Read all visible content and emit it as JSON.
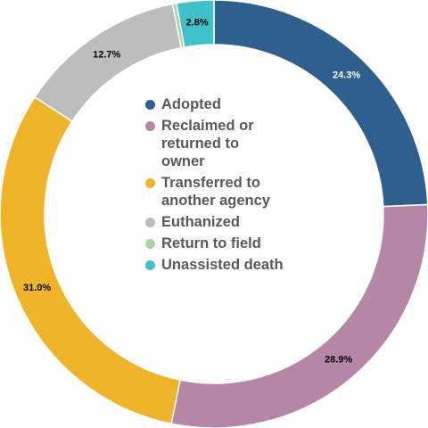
{
  "chart_data": {
    "type": "pie",
    "variant": "donut",
    "categories": [
      "Adopted",
      "Reclaimed or returned to owner",
      "Transferred to another agency",
      "Euthanized",
      "Return to field",
      "Unassisted death"
    ],
    "values": [
      24.3,
      28.9,
      31.0,
      12.7,
      0.3,
      2.8
    ],
    "data_labels": [
      "24.3%",
      "28.9%",
      "31.0%",
      "12.7%",
      "",
      "2.8%"
    ],
    "colors": [
      "#2F5F8F",
      "#B586A5",
      "#F0B429",
      "#BDBDBD",
      "#A8D5A2",
      "#3FC1C9"
    ],
    "legend_placement": "center"
  },
  "legend": {
    "items": [
      {
        "label_lines": [
          "Adopted"
        ],
        "color": "#2F5F8F"
      },
      {
        "label_lines": [
          "Reclaimed or",
          "returned to",
          "owner"
        ],
        "color": "#B586A5"
      },
      {
        "label_lines": [
          "Transferred to",
          "another agency"
        ],
        "color": "#F0B429"
      },
      {
        "label_lines": [
          "Euthanized"
        ],
        "color": "#BDBDBD"
      },
      {
        "label_lines": [
          "Return to field"
        ],
        "color": "#A8D5A2"
      },
      {
        "label_lines": [
          "Unassisted death"
        ],
        "color": "#3FC1C9"
      }
    ]
  }
}
